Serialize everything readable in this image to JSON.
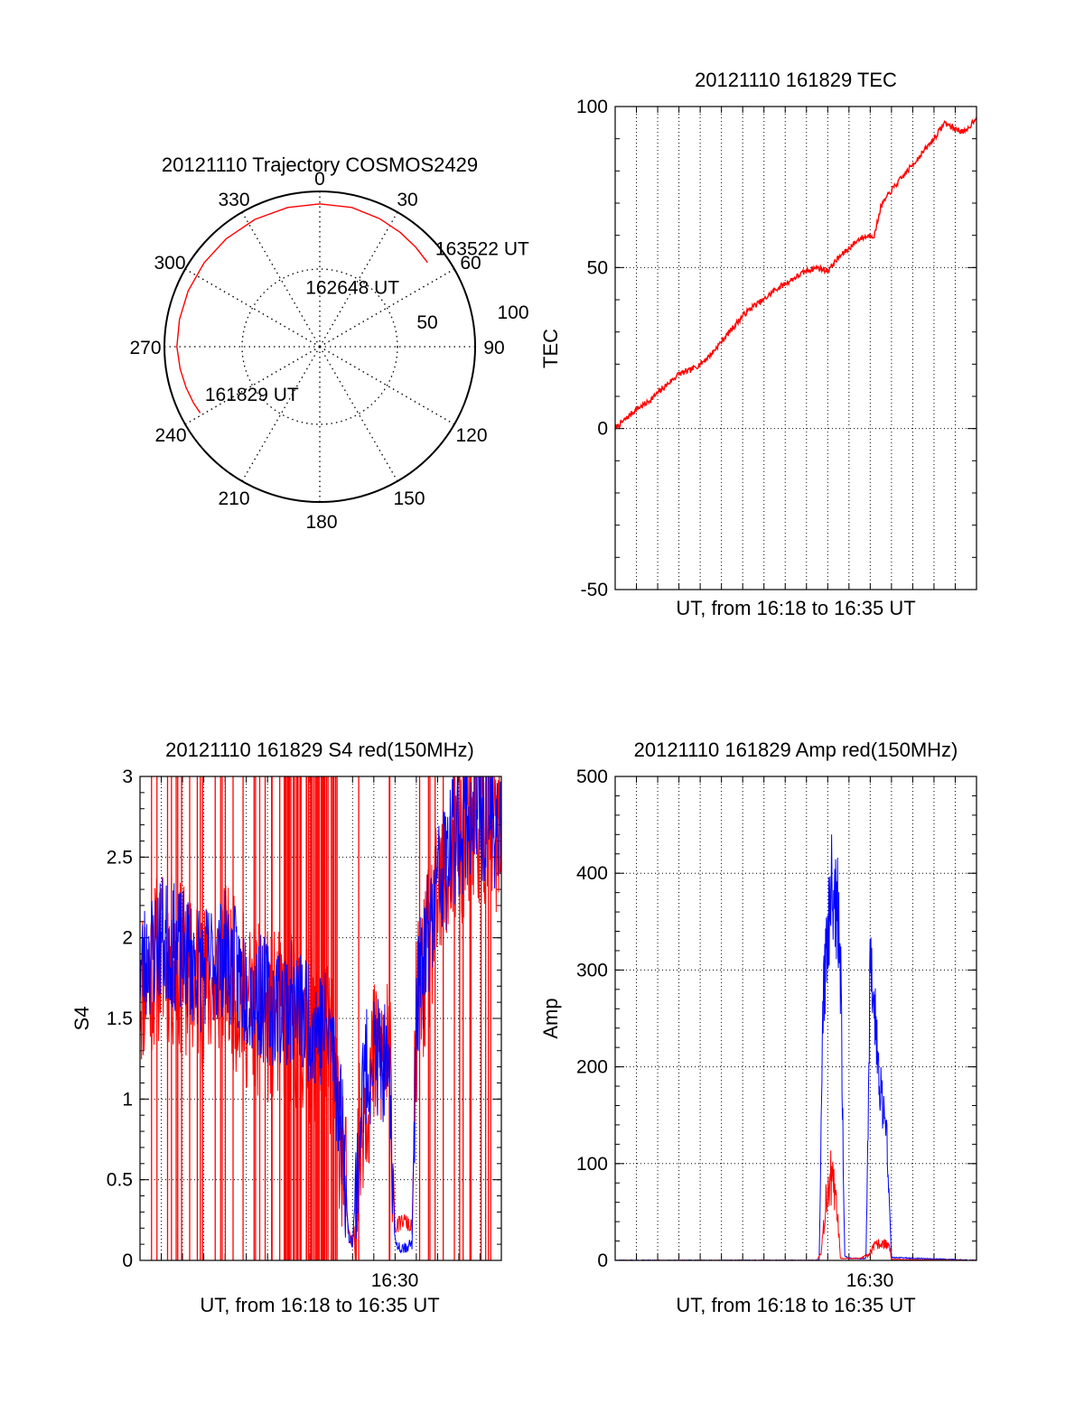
{
  "colors": {
    "red": "#ff0000",
    "blue": "#0000ff",
    "axis": "#000000",
    "grid": "#000000"
  },
  "chart_data": [
    {
      "id": "trajectory",
      "type": "polar",
      "title": "20121110 Trajectory COSMOS2429",
      "angle_labels": [
        "0",
        "30",
        "60",
        "90",
        "120",
        "150",
        "180",
        "210",
        "240",
        "270",
        "300",
        "330"
      ],
      "ring_labels": [
        "50",
        "100"
      ],
      "r_range": [
        0,
        100
      ],
      "trajectory": {
        "azimuth": [
          241,
          246,
          253,
          261,
          270,
          281,
          293,
          306,
          319,
          333,
          347,
          360,
          13,
          25,
          35,
          44,
          52
        ],
        "radius": [
          88,
          89,
          90,
          91,
          92,
          92,
          92,
          92,
          92,
          92,
          92,
          92,
          92,
          91,
          90,
          89,
          88
        ],
        "color": "red"
      },
      "annotations": [
        {
          "text": "161829 UT",
          "azimuth": 248,
          "radius": 81
        },
        {
          "text": "162648 UT",
          "azimuth": 345,
          "radius": 40
        },
        {
          "text": "163522 UT",
          "azimuth": 49,
          "radius": 97
        }
      ]
    },
    {
      "id": "tec",
      "type": "line",
      "title": "20121110 161829 TEC",
      "xlabel": "UT, from 16:18 to 16:35 UT",
      "ylabel": "TEC",
      "xlim": [
        0,
        17
      ],
      "ylim": [
        -50,
        100
      ],
      "yticks": [
        -50,
        0,
        50,
        100
      ],
      "x_grid_count": 17,
      "series": [
        {
          "color": "red",
          "x": [
            0,
            0.5,
            1,
            1.5,
            2,
            2.5,
            3,
            3.5,
            4,
            4.5,
            5,
            5.5,
            6,
            6.5,
            7,
            7.5,
            8,
            8.5,
            9,
            9.5,
            10,
            10.5,
            11,
            11.5,
            12,
            12.2,
            12.5,
            13,
            13.5,
            14,
            14.5,
            15,
            15.5,
            16,
            16.5,
            17
          ],
          "y": [
            0,
            3,
            6,
            8,
            11,
            14,
            17,
            18,
            20,
            23,
            27,
            31,
            35,
            38,
            40,
            43,
            45,
            47,
            49,
            50,
            49,
            53,
            56,
            59,
            60,
            60,
            69,
            74,
            78,
            82,
            86,
            90,
            95,
            93,
            92,
            97
          ]
        }
      ]
    },
    {
      "id": "s4",
      "type": "line",
      "title": "20121110 161829 S4 red(150MHz)",
      "xlabel": "UT, from 16:18 to 16:35 UT",
      "ylabel": "S4",
      "xlim": [
        0,
        17
      ],
      "ylim": [
        0,
        3
      ],
      "yticks": [
        0,
        0.5,
        1,
        1.5,
        2,
        2.5,
        3
      ],
      "ytick_labels": [
        "0",
        "0.5",
        "1",
        "1.5",
        "2",
        "2.5",
        "3"
      ],
      "xtick_labels": [
        {
          "x": 12,
          "label": "16:30"
        }
      ],
      "x_grid_count": 17,
      "series": [
        {
          "name": "red",
          "color": "red",
          "x": [
            0,
            1,
            2,
            3,
            4,
            5,
            6,
            7,
            8,
            9,
            9.6,
            9.8,
            10,
            10.5,
            11,
            11.5,
            11.8,
            12,
            12.4,
            12.8,
            13,
            14,
            15,
            16,
            17
          ],
          "y": [
            1.7,
            1.9,
            1.8,
            1.7,
            1.8,
            1.6,
            1.5,
            1.5,
            1.4,
            1.3,
            0.6,
            0.15,
            0.1,
            1.0,
            1.2,
            1.3,
            1.1,
            0.2,
            0.25,
            0.2,
            1.5,
            2.2,
            2.6,
            2.7,
            2.6
          ]
        },
        {
          "name": "blue",
          "color": "blue",
          "x": [
            0,
            1,
            2,
            3,
            4,
            5,
            6,
            7,
            8,
            9,
            9.6,
            9.8,
            10,
            10.5,
            11,
            11.5,
            11.8,
            12,
            12.4,
            12.8,
            13,
            14,
            15,
            16,
            17
          ],
          "y": [
            1.8,
            2.0,
            1.9,
            1.8,
            1.9,
            1.7,
            1.6,
            1.6,
            1.5,
            1.4,
            0.7,
            0.15,
            0.12,
            1.1,
            1.3,
            1.2,
            0.9,
            0.1,
            0.08,
            0.1,
            1.6,
            2.3,
            2.7,
            2.8,
            2.7
          ]
        }
      ]
    },
    {
      "id": "amp",
      "type": "line",
      "title": "20121110 161829 Amp red(150MHz)",
      "xlabel": "UT, from 16:18 to 16:35 UT",
      "ylabel": "Amp",
      "xlim": [
        0,
        17
      ],
      "ylim": [
        0,
        500
      ],
      "yticks": [
        0,
        100,
        200,
        300,
        400,
        500
      ],
      "xtick_labels": [
        {
          "x": 12,
          "label": "16:30"
        }
      ],
      "x_grid_count": 17,
      "series": [
        {
          "name": "red",
          "color": "red",
          "x": [
            0,
            9.5,
            9.7,
            9.9,
            10.1,
            10.3,
            10.5,
            10.6,
            11,
            11.5,
            11.9,
            12.2,
            12.6,
            12.9,
            13,
            17
          ],
          "y": [
            0,
            0,
            10,
            60,
            90,
            70,
            40,
            2,
            2,
            2,
            5,
            15,
            18,
            15,
            1,
            0
          ]
        },
        {
          "name": "blue",
          "color": "blue",
          "x": [
            0,
            9.6,
            9.8,
            10.0,
            10.2,
            10.4,
            10.6,
            10.8,
            11,
            11.5,
            11.8,
            12.0,
            12.2,
            12.4,
            12.6,
            12.8,
            13.0,
            17
          ],
          "y": [
            0,
            0,
            280,
            350,
            410,
            380,
            300,
            5,
            2,
            2,
            2,
            300,
            260,
            200,
            160,
            120,
            3,
            0
          ]
        }
      ]
    }
  ]
}
